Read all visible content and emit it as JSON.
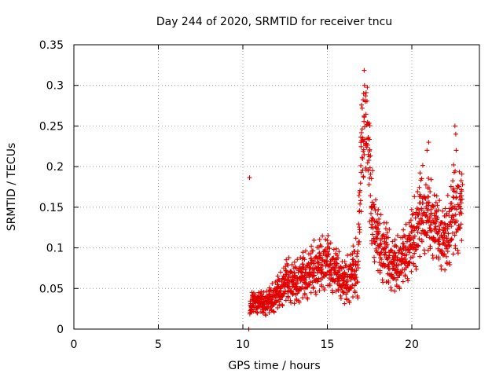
{
  "chart_data": {
    "type": "scatter",
    "title": "Day 244 of 2020, SRMTID for receiver tncu",
    "xlabel": "GPS time / hours",
    "ylabel": "SRMTID / TECUs",
    "xlim": [
      0,
      24
    ],
    "ylim": [
      0,
      0.35
    ],
    "xticks": [
      0,
      5,
      10,
      15,
      20
    ],
    "yticks": [
      0,
      0.05,
      0.1,
      0.15,
      0.2,
      0.25,
      0.3,
      0.35
    ],
    "xtick_labels": [
      "0",
      "5",
      "10",
      "15",
      "20"
    ],
    "ytick_labels": [
      "0",
      "0.05",
      "0.1",
      "0.15",
      "0.2",
      "0.25",
      "0.3",
      "0.35"
    ],
    "grid": true,
    "marker": "plus",
    "color": "#e00000",
    "series": [
      {
        "name": "SRMTID",
        "envelope_note": "approximate trend of the dense point cloud read from the plot",
        "x": [
          10.4,
          10.6,
          10.8,
          11.0,
          11.2,
          11.4,
          11.6,
          11.8,
          12.0,
          12.2,
          12.4,
          12.6,
          12.8,
          13.0,
          13.2,
          13.4,
          13.6,
          13.8,
          14.0,
          14.2,
          14.4,
          14.6,
          14.8,
          15.0,
          15.2,
          15.4,
          15.6,
          15.8,
          16.0,
          16.2,
          16.4,
          16.6,
          16.8,
          17.0,
          17.1,
          17.2,
          17.3,
          17.4,
          17.5,
          17.6,
          17.8,
          18.0,
          18.2,
          18.4,
          18.6,
          18.8,
          19.0,
          19.2,
          19.4,
          19.6,
          19.8,
          20.0,
          20.2,
          20.4,
          20.6,
          20.8,
          21.0,
          21.2,
          21.4,
          21.6,
          21.8,
          22.0,
          22.2,
          22.4,
          22.6,
          22.8,
          23.0
        ],
        "y": [
          0.03,
          0.032,
          0.03,
          0.032,
          0.028,
          0.03,
          0.032,
          0.035,
          0.04,
          0.042,
          0.05,
          0.055,
          0.055,
          0.05,
          0.052,
          0.058,
          0.06,
          0.06,
          0.065,
          0.07,
          0.068,
          0.072,
          0.075,
          0.078,
          0.07,
          0.068,
          0.065,
          0.06,
          0.05,
          0.055,
          0.06,
          0.065,
          0.07,
          0.19,
          0.22,
          0.24,
          0.25,
          0.22,
          0.18,
          0.14,
          0.12,
          0.1,
          0.09,
          0.09,
          0.08,
          0.075,
          0.07,
          0.075,
          0.08,
          0.085,
          0.09,
          0.1,
          0.11,
          0.12,
          0.14,
          0.13,
          0.13,
          0.125,
          0.12,
          0.11,
          0.105,
          0.1,
          0.115,
          0.13,
          0.14,
          0.14,
          0.14
        ],
        "spread": [
          0.008,
          0.01,
          0.01,
          0.01,
          0.01,
          0.012,
          0.012,
          0.014,
          0.015,
          0.016,
          0.018,
          0.02,
          0.02,
          0.02,
          0.02,
          0.022,
          0.022,
          0.022,
          0.022,
          0.024,
          0.024,
          0.025,
          0.025,
          0.025,
          0.022,
          0.022,
          0.02,
          0.02,
          0.02,
          0.022,
          0.024,
          0.025,
          0.03,
          0.05,
          0.05,
          0.05,
          0.05,
          0.05,
          0.05,
          0.04,
          0.035,
          0.03,
          0.03,
          0.03,
          0.028,
          0.025,
          0.025,
          0.025,
          0.025,
          0.025,
          0.028,
          0.03,
          0.035,
          0.04,
          0.04,
          0.035,
          0.035,
          0.035,
          0.03,
          0.03,
          0.03,
          0.03,
          0.035,
          0.04,
          0.05,
          0.04,
          0.03
        ]
      }
    ],
    "extra_points": [
      {
        "x": 10.35,
        "y": 0.0
      },
      {
        "x": 17.2,
        "y": 0.3
      },
      {
        "x": 17.15,
        "y": 0.29
      },
      {
        "x": 17.25,
        "y": 0.28
      },
      {
        "x": 22.55,
        "y": 0.25
      },
      {
        "x": 22.6,
        "y": 0.24
      },
      {
        "x": 21.0,
        "y": 0.23
      },
      {
        "x": 20.9,
        "y": 0.22
      }
    ]
  }
}
